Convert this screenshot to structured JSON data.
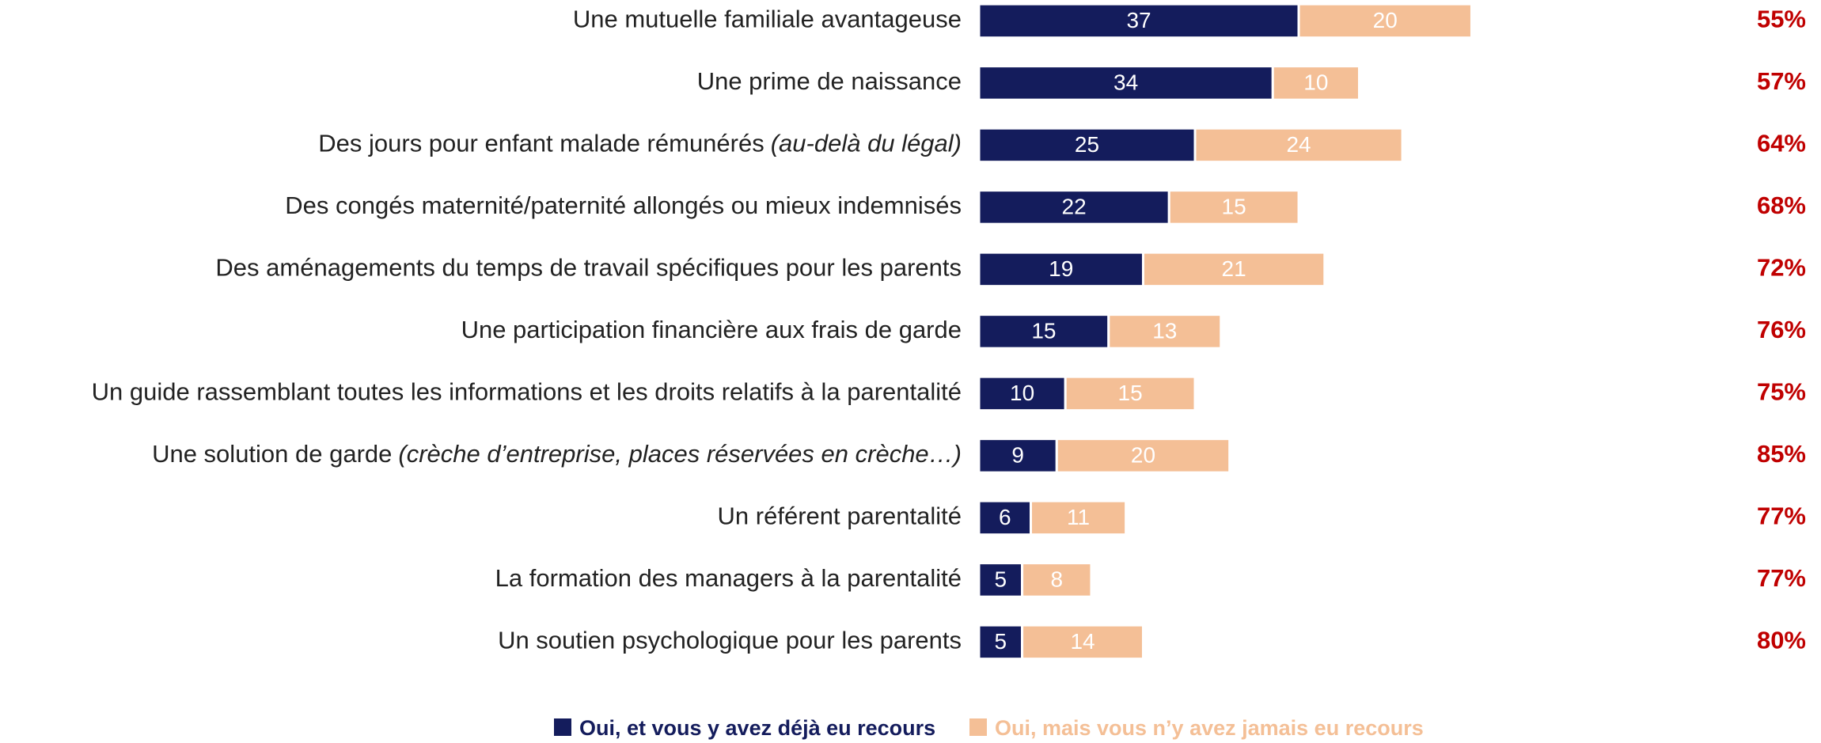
{
  "chart_data": {
    "type": "stacked_bar_horizontal",
    "categories": [
      "Une mutuelle familiale avantageuse",
      "Une prime de naissance",
      "Des jours pour enfant malade rémunérés",
      "Des congés maternité/paternité allongés ou mieux indemnisés",
      "Des aménagements du temps de travail spécifiques pour les parents",
      "Une participation financière aux frais de garde",
      "Un guide rassemblant toutes les informations et les droits relatifs à la parentalité",
      "Une solution de garde",
      "Un référent parentalité",
      "La formation des managers à la parentalité",
      "Un soutien psychologique pour les parents"
    ],
    "category_details": [
      null,
      null,
      "(au-delà du légal)",
      null,
      null,
      null,
      null,
      "(crèche d’entreprise, places réservées en crèche…)",
      null,
      null,
      null
    ],
    "series": [
      {
        "name": "Oui, et vous y avez déjà eu recours",
        "color": "#141c5c",
        "values": [
          37,
          34,
          25,
          22,
          19,
          15,
          10,
          9,
          6,
          5,
          5
        ]
      },
      {
        "name": "Oui, mais vous n’y avez jamais eu recours",
        "color": "#f4bf96",
        "values": [
          20,
          10,
          24,
          15,
          21,
          13,
          15,
          20,
          11,
          8,
          14
        ]
      }
    ],
    "right_values": [
      55,
      57,
      64,
      68,
      72,
      76,
      75,
      85,
      77,
      77,
      80
    ],
    "right_value_labels": [
      "55%",
      "57%",
      "64%",
      "68%",
      "72%",
      "76%",
      "75%",
      "85%",
      "77%",
      "77%",
      "80%"
    ],
    "right_color": "#c00000"
  }
}
